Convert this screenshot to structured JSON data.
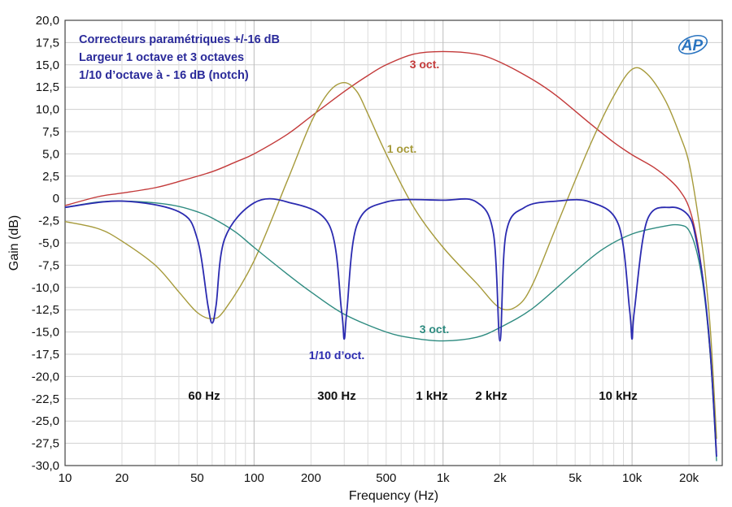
{
  "chart_data": {
    "type": "line",
    "xlabel": "Frequency (Hz)",
    "ylabel": "Gain (dB)",
    "xscale": "log",
    "xlim": [
      10,
      30000
    ],
    "ylim": [
      -30,
      20
    ],
    "grid": true,
    "x_ticks": [
      {
        "value": 10,
        "label": "10"
      },
      {
        "value": 20,
        "label": "20"
      },
      {
        "value": 50,
        "label": "50"
      },
      {
        "value": 100,
        "label": "100"
      },
      {
        "value": 200,
        "label": "200"
      },
      {
        "value": 500,
        "label": "500"
      },
      {
        "value": 1000,
        "label": "1k"
      },
      {
        "value": 2000,
        "label": "2k"
      },
      {
        "value": 5000,
        "label": "5k"
      },
      {
        "value": 10000,
        "label": "10k"
      },
      {
        "value": 20000,
        "label": "20k"
      }
    ],
    "y_ticks": [
      {
        "value": 20,
        "label": "20,0"
      },
      {
        "value": 17.5,
        "label": "17,5"
      },
      {
        "value": 15,
        "label": "15,0"
      },
      {
        "value": 12.5,
        "label": "12,5"
      },
      {
        "value": 10,
        "label": "10,0"
      },
      {
        "value": 7.5,
        "label": "7,5"
      },
      {
        "value": 5,
        "label": "5,0"
      },
      {
        "value": 2.5,
        "label": "2,5"
      },
      {
        "value": 0,
        "label": "0"
      },
      {
        "value": -2.5,
        "label": "-2,5"
      },
      {
        "value": -5,
        "label": "-5,0"
      },
      {
        "value": -7.5,
        "label": "-7,5"
      },
      {
        "value": -10,
        "label": "-10,0"
      },
      {
        "value": -12.5,
        "label": "-12,5"
      },
      {
        "value": -15,
        "label": "-15,0"
      },
      {
        "value": -17.5,
        "label": "-17,5"
      },
      {
        "value": -20,
        "label": "-20,0"
      },
      {
        "value": -22.5,
        "label": "-22,5"
      },
      {
        "value": -25,
        "label": "-25,0"
      },
      {
        "value": -27.5,
        "label": "-27,5"
      },
      {
        "value": -30,
        "label": "-30,0"
      }
    ],
    "annotations": [
      "Correcteurs paramétriques +/-16 dB",
      "Largeur 1 octave et 3 octaves",
      "1/10 d’octave à - 16 dB (notch)"
    ],
    "frequency_labels": [
      "60 Hz",
      "300 Hz",
      "1 kHz",
      "2 kHz",
      "10 kHz"
    ],
    "logo": "AP",
    "series": [
      {
        "name": "3 oct.",
        "color": "#c33a3a",
        "x": [
          10,
          15,
          20,
          30,
          40,
          60,
          80,
          100,
          150,
          200,
          300,
          400,
          500,
          700,
          1000,
          1500,
          2000,
          3000,
          4000,
          6000,
          8000,
          10000,
          13000,
          16000,
          18000,
          20000,
          22000,
          24000,
          26000,
          28000
        ],
        "y": [
          -0.8,
          0.2,
          0.6,
          1.2,
          1.9,
          3.0,
          4.1,
          5.0,
          7.2,
          9.2,
          12.0,
          13.8,
          15.0,
          16.2,
          16.5,
          16.2,
          15.3,
          13.3,
          11.5,
          8.4,
          6.3,
          4.9,
          3.5,
          2.0,
          0.8,
          -1.0,
          -4.5,
          -10.0,
          -18.0,
          -28.5
        ]
      },
      {
        "name": "1 oct.",
        "color": "#a69a3a",
        "x": [
          10,
          15,
          20,
          30,
          40,
          50,
          60,
          70,
          100,
          150,
          200,
          250,
          300,
          350,
          400,
          500,
          700,
          1000,
          1500,
          2000,
          2500,
          3000,
          4000,
          6000,
          8000,
          10000,
          12000,
          15000,
          18000,
          20000,
          22000,
          24000,
          26000,
          28000
        ],
        "y": [
          -2.6,
          -3.4,
          -4.8,
          -7.5,
          -10.5,
          -12.8,
          -13.5,
          -12.5,
          -7.0,
          2.0,
          8.5,
          12.0,
          13.0,
          12.0,
          9.5,
          5.0,
          -1.0,
          -5.5,
          -9.5,
          -12.3,
          -12.0,
          -9.5,
          -3.0,
          6.0,
          11.5,
          14.5,
          14.0,
          11.0,
          7.0,
          4.0,
          -1.0,
          -7.0,
          -15.0,
          -27.0
        ]
      },
      {
        "name": "3 oct.",
        "color": "#2e8b80",
        "x": [
          10,
          15,
          20,
          30,
          40,
          50,
          60,
          80,
          100,
          150,
          200,
          300,
          500,
          700,
          1000,
          1500,
          2000,
          3000,
          5000,
          7000,
          10000,
          15000,
          18000,
          20000,
          22000,
          24000,
          26000,
          28000
        ],
        "y": [
          -1.0,
          -0.4,
          -0.3,
          -0.5,
          -0.9,
          -1.5,
          -2.2,
          -3.8,
          -5.5,
          -8.5,
          -10.5,
          -13.0,
          -15.0,
          -15.7,
          -16.0,
          -15.6,
          -14.5,
          -12.3,
          -8.2,
          -5.7,
          -4.0,
          -3.1,
          -3.0,
          -3.6,
          -6.0,
          -10.5,
          -18.0,
          -29.5
        ]
      },
      {
        "name": "1/10 d’oct.",
        "color": "#2b2bb0",
        "notches": [
          {
            "freq": 60,
            "depth": -14.0
          },
          {
            "freq": 300,
            "depth": -15.8
          },
          {
            "freq": 2000,
            "depth": -16.0
          },
          {
            "freq": 10000,
            "depth": -15.8
          }
        ],
        "x": [
          10,
          20,
          40,
          50,
          57,
          60,
          63,
          70,
          100,
          150,
          250,
          290,
          300,
          310,
          350,
          500,
          1000,
          1500,
          1850,
          2000,
          2150,
          2700,
          4000,
          6000,
          8500,
          9700,
          10000,
          10300,
          12000,
          16000,
          20000,
          22000,
          24000,
          26000,
          28000
        ],
        "y": [
          -1.0,
          -0.3,
          -1.5,
          -4.5,
          -12.0,
          -14.0,
          -12.0,
          -4.5,
          -0.5,
          -0.4,
          -3.0,
          -12.5,
          -15.8,
          -12.5,
          -3.0,
          -0.4,
          -0.2,
          -0.4,
          -4.0,
          -16.0,
          -4.0,
          -1.0,
          -0.3,
          -0.4,
          -3.0,
          -12.5,
          -15.8,
          -12.5,
          -2.5,
          -1.0,
          -2.0,
          -5.0,
          -10.0,
          -17.5,
          -29.0
        ]
      }
    ]
  }
}
